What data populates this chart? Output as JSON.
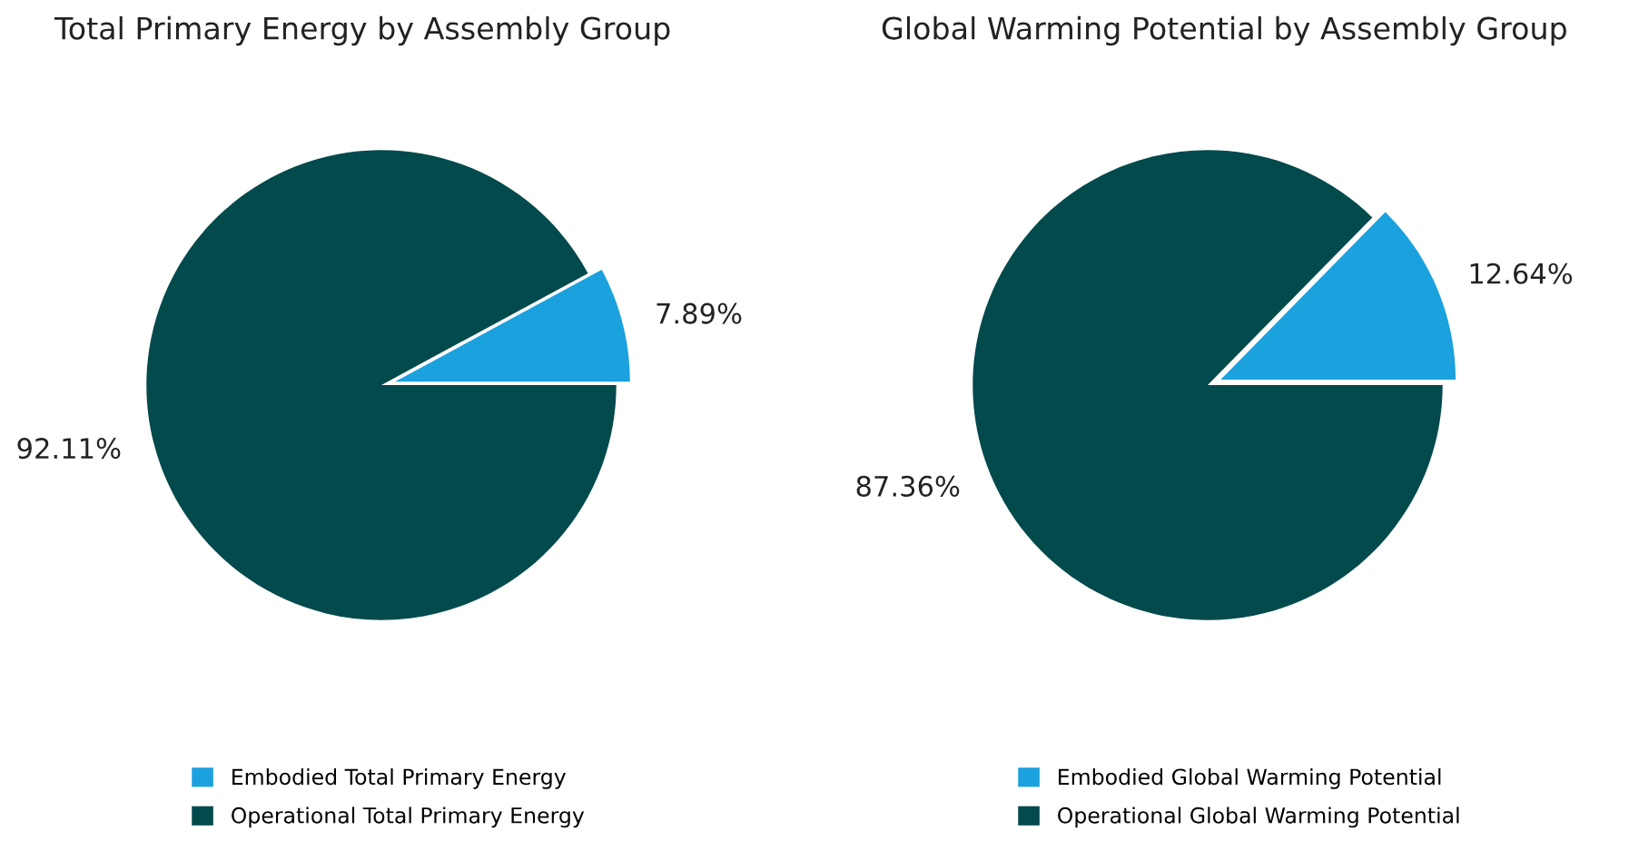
{
  "chart_data": [
    {
      "type": "pie",
      "title": "Total Primary Energy by Assembly Group",
      "categories": [
        "Embodied Total Primary Energy",
        "Operational Total Primary Energy"
      ],
      "values": [
        7.89,
        92.11
      ],
      "value_labels": [
        "7.89%",
        "92.11%"
      ],
      "colors": [
        "#1ba1de",
        "#034a4c"
      ],
      "legend": "bottom"
    },
    {
      "type": "pie",
      "title": "Global Warming Potential by Assembly Group",
      "categories": [
        "Embodied Global Warming Potential",
        "Operational Global Warming Potential"
      ],
      "values": [
        12.64,
        87.36
      ],
      "value_labels": [
        "12.64%",
        "87.36%"
      ],
      "colors": [
        "#1ba1de",
        "#034a4c"
      ],
      "legend": "bottom"
    }
  ]
}
